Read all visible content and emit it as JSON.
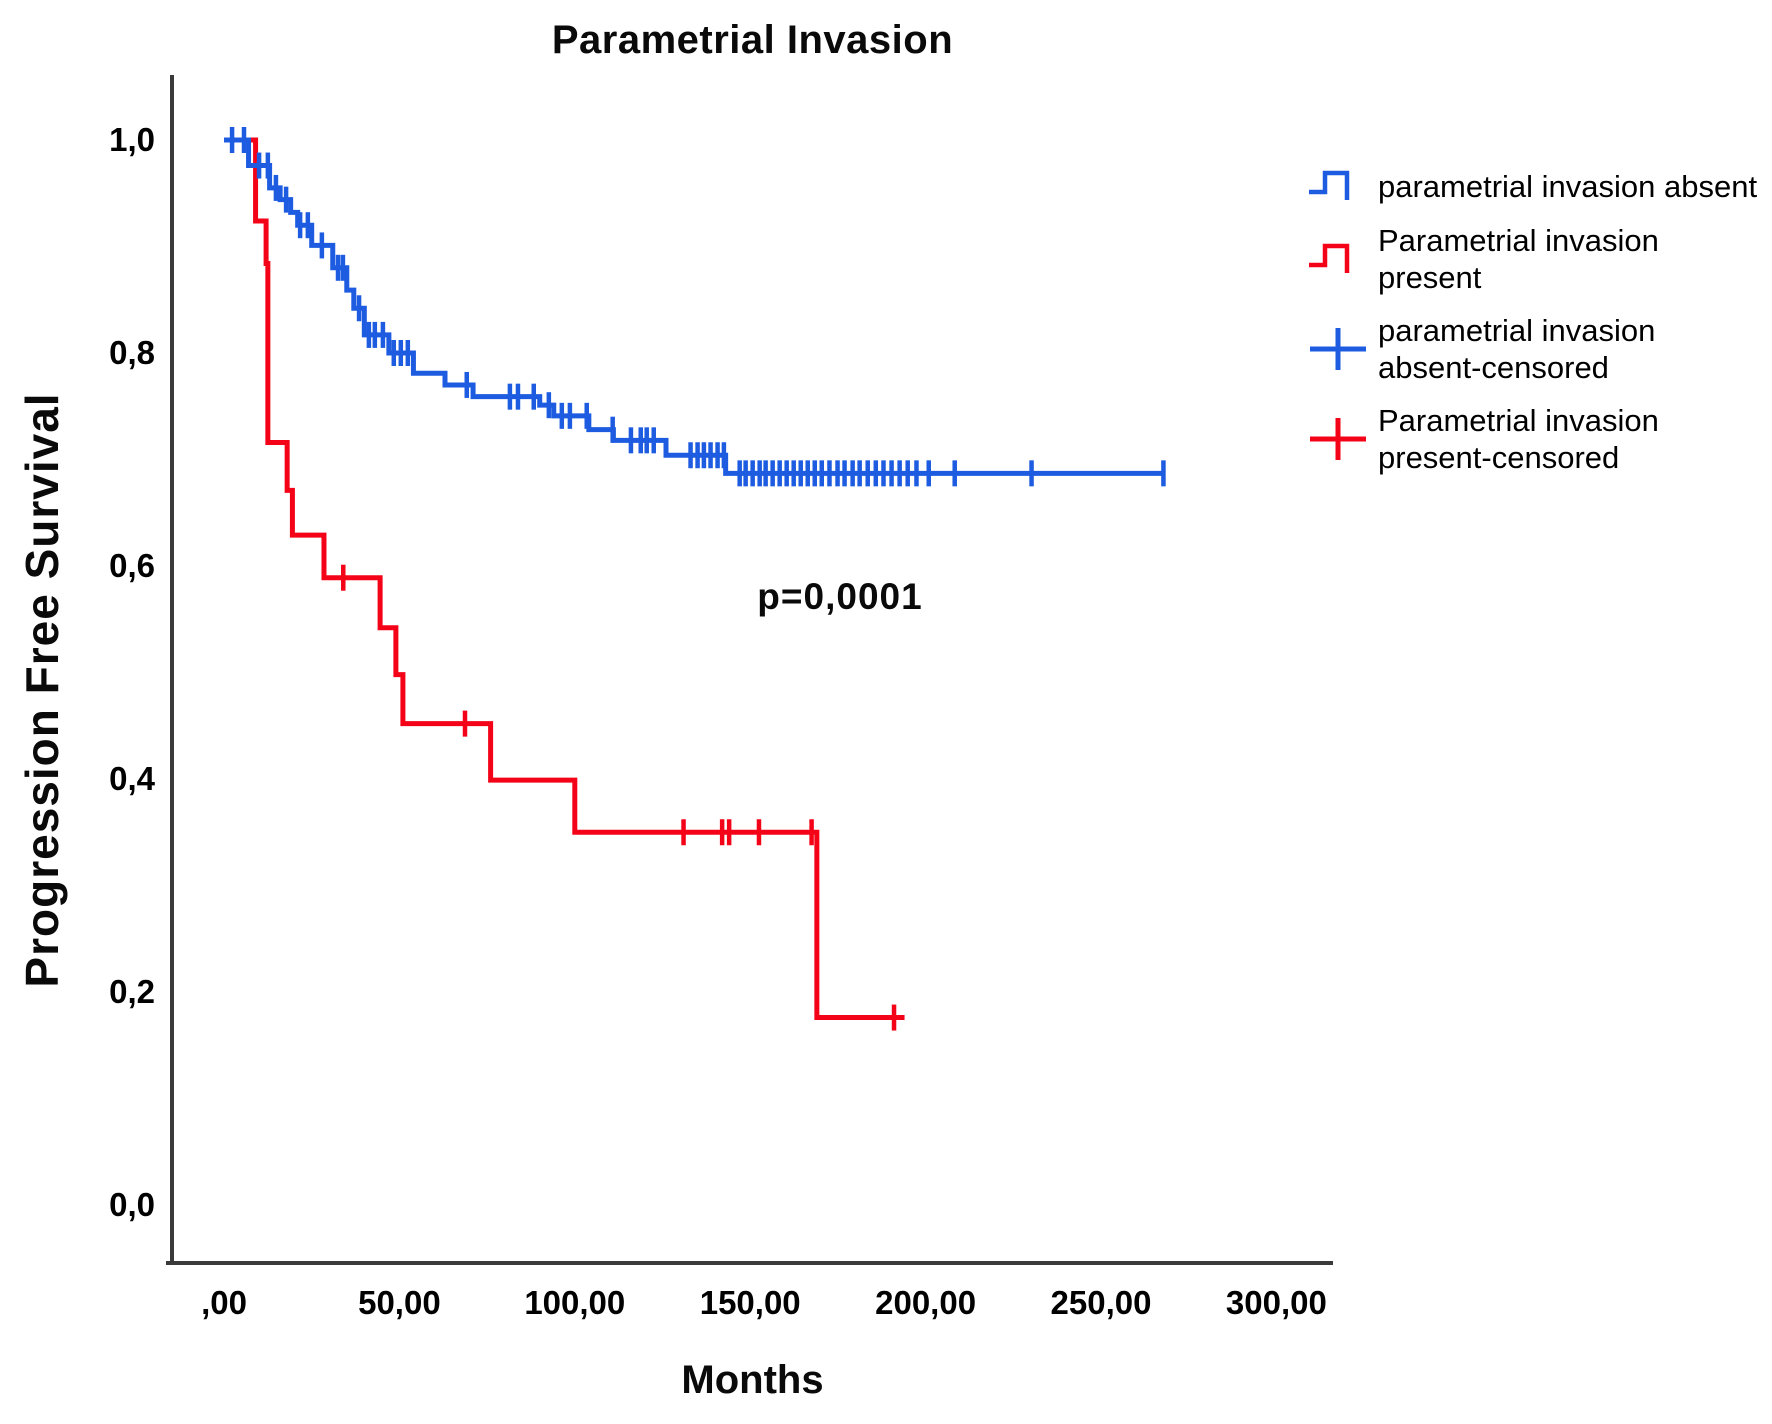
{
  "title": "Parametrial Invasion",
  "annotation": {
    "p_value": "p=0,0001"
  },
  "x_axis": {
    "label": "Months",
    "tick_labels": [
      ",00",
      "50,00",
      "100,00",
      "150,00",
      "200,00",
      "250,00",
      "300,00"
    ],
    "tick_values": [
      0,
      50,
      100,
      150,
      200,
      250,
      300
    ]
  },
  "y_axis": {
    "label": "Progression Free Survival",
    "tick_labels": [
      "1,0",
      "0,8",
      "0,6",
      "0,4",
      "0,2",
      "0,0"
    ],
    "tick_values": [
      1.0,
      0.8,
      0.6,
      0.4,
      0.2,
      0.0
    ]
  },
  "colors": {
    "absent_blue": "#1d5be0",
    "present_red": "#f40318",
    "axis": "#3a3a3a",
    "text": "#000000"
  },
  "legend": {
    "items": [
      {
        "label": "parametrial invasion absent",
        "marker": "step",
        "color": "#1d5be0"
      },
      {
        "label": "Parametrial invasion present",
        "marker": "step",
        "color": "#f40318"
      },
      {
        "label": "parametrial invasion absent-censored",
        "marker": "plus",
        "color": "#1d5be0"
      },
      {
        "label": "Parametrial invasion present-censored",
        "marker": "plus",
        "color": "#f40318"
      }
    ]
  },
  "chart_data": {
    "type": "line",
    "subtype": "kaplan-meier-step",
    "title": "Parametrial Invasion",
    "xlabel": "Months",
    "ylabel": "Progression Free Survival",
    "xlim": [
      0,
      300
    ],
    "ylim": [
      0.0,
      1.0
    ],
    "x_ticks": [
      0,
      50,
      100,
      150,
      200,
      250,
      300
    ],
    "y_ticks": [
      1.0,
      0.8,
      0.6,
      0.4,
      0.2,
      0.0
    ],
    "annotation": "p=0,0001",
    "legend_position": "right",
    "grid": false,
    "series": [
      {
        "name": "parametrial invasion absent",
        "color": "#1d5be0",
        "end_t": 268,
        "steps": [
          [
            0,
            1.0
          ],
          [
            7,
            0.976
          ],
          [
            13,
            0.955
          ],
          [
            16,
            0.944
          ],
          [
            19,
            0.932
          ],
          [
            21,
            0.92
          ],
          [
            25,
            0.901
          ],
          [
            31,
            0.88
          ],
          [
            35,
            0.859
          ],
          [
            37,
            0.842
          ],
          [
            40,
            0.817
          ],
          [
            47,
            0.8
          ],
          [
            54,
            0.781
          ],
          [
            63,
            0.77
          ],
          [
            71,
            0.759
          ],
          [
            90,
            0.751
          ],
          [
            94,
            0.741
          ],
          [
            104,
            0.728
          ],
          [
            111,
            0.718
          ],
          [
            126,
            0.704
          ],
          [
            143,
            0.687
          ]
        ],
        "censors": [
          [
            2.3,
            1.0
          ],
          [
            5.7,
            1.0
          ],
          [
            10,
            0.976
          ],
          [
            12.5,
            0.976
          ],
          [
            14.8,
            0.955
          ],
          [
            17.7,
            0.944
          ],
          [
            21.7,
            0.92
          ],
          [
            23.9,
            0.92
          ],
          [
            27.9,
            0.901
          ],
          [
            32.5,
            0.88
          ],
          [
            33.9,
            0.88
          ],
          [
            38.5,
            0.842
          ],
          [
            41.3,
            0.817
          ],
          [
            43,
            0.817
          ],
          [
            45.3,
            0.817
          ],
          [
            48.4,
            0.8
          ],
          [
            50.4,
            0.8
          ],
          [
            52.4,
            0.8
          ],
          [
            69.2,
            0.77
          ],
          [
            81.5,
            0.759
          ],
          [
            83.8,
            0.759
          ],
          [
            88.3,
            0.759
          ],
          [
            92.6,
            0.751
          ],
          [
            96.3,
            0.741
          ],
          [
            98.6,
            0.741
          ],
          [
            103.4,
            0.741
          ],
          [
            110.8,
            0.728
          ],
          [
            116,
            0.718
          ],
          [
            118.8,
            0.718
          ],
          [
            120.5,
            0.718
          ],
          [
            122.5,
            0.718
          ],
          [
            133,
            0.704
          ],
          [
            135,
            0.704
          ],
          [
            136.8,
            0.704
          ],
          [
            138.7,
            0.704
          ],
          [
            140.7,
            0.704
          ],
          [
            142.5,
            0.704
          ],
          [
            147,
            0.687
          ],
          [
            148.7,
            0.687
          ],
          [
            150.7,
            0.687
          ],
          [
            152.7,
            0.687
          ],
          [
            154.4,
            0.687
          ],
          [
            156.4,
            0.687
          ],
          [
            158.4,
            0.687
          ],
          [
            160.4,
            0.687
          ],
          [
            162.4,
            0.687
          ],
          [
            164.4,
            0.687
          ],
          [
            166.4,
            0.687
          ],
          [
            168.4,
            0.687
          ],
          [
            170.4,
            0.687
          ],
          [
            172.6,
            0.687
          ],
          [
            174.9,
            0.687
          ],
          [
            176.9,
            0.687
          ],
          [
            179.2,
            0.687
          ],
          [
            181.2,
            0.687
          ],
          [
            183.5,
            0.687
          ],
          [
            185.8,
            0.687
          ],
          [
            188,
            0.687
          ],
          [
            190.3,
            0.687
          ],
          [
            192.6,
            0.687
          ],
          [
            194.9,
            0.687
          ],
          [
            197.4,
            0.687
          ],
          [
            200.9,
            0.687
          ],
          [
            208.3,
            0.687
          ],
          [
            230.2,
            0.687
          ],
          [
            267.8,
            0.687
          ]
        ]
      },
      {
        "name": "Parametrial invasion present",
        "color": "#f40318",
        "end_t": 194,
        "steps": [
          [
            0,
            1.0
          ],
          [
            9,
            0.924
          ],
          [
            12,
            0.884
          ],
          [
            12.5,
            0.716
          ],
          [
            18,
            0.671
          ],
          [
            19.5,
            0.629
          ],
          [
            28.5,
            0.589
          ],
          [
            44.5,
            0.542
          ],
          [
            49,
            0.498
          ],
          [
            51,
            0.452
          ],
          [
            76,
            0.399
          ],
          [
            100,
            0.35
          ],
          [
            169,
            0.176
          ]
        ],
        "censors": [
          [
            34,
            0.589
          ],
          [
            68.7,
            0.452
          ],
          [
            131,
            0.35
          ],
          [
            142,
            0.35
          ],
          [
            144,
            0.35
          ],
          [
            152.5,
            0.35
          ],
          [
            167.5,
            0.35
          ],
          [
            191,
            0.176
          ]
        ]
      }
    ]
  }
}
